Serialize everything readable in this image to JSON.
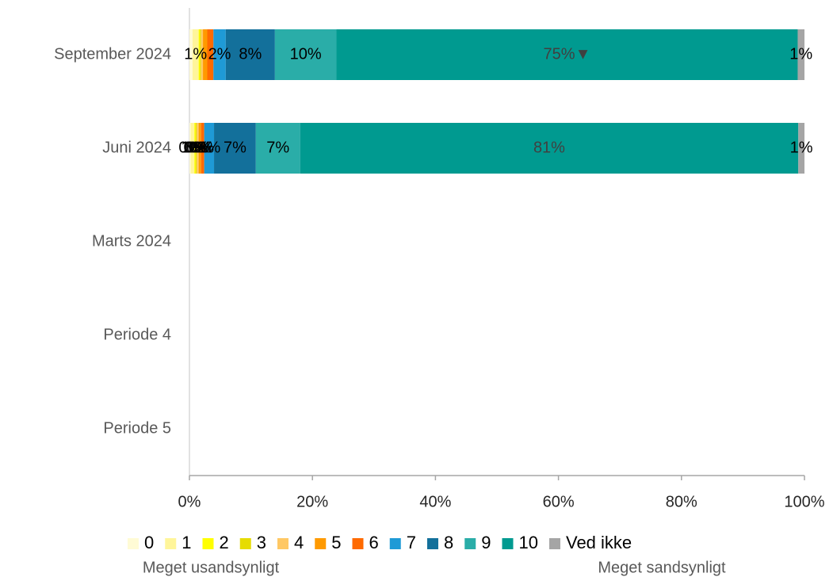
{
  "chart_data": {
    "type": "stacked-barh",
    "categories": [
      "September 2024",
      "Juni 2024",
      "Marts 2024",
      "Periode 4",
      "Periode 5"
    ],
    "series": [
      {
        "name": "0",
        "color": "#fffbd5",
        "values": [
          0.5,
          0.2,
          null,
          null,
          null
        ],
        "value_labels": [
          null,
          "0%",
          null,
          null,
          null
        ]
      },
      {
        "name": "1",
        "color": "#fff59a",
        "values": [
          1,
          0.6,
          null,
          null,
          null
        ],
        "value_labels": [
          "1%",
          "1%",
          null,
          null,
          null
        ]
      },
      {
        "name": "2",
        "color": "#ffff00",
        "values": [
          0.2,
          0.2,
          null,
          null,
          null
        ],
        "value_labels": [
          null,
          "0%",
          null,
          null,
          null
        ]
      },
      {
        "name": "3",
        "color": "#e6dc00",
        "values": [
          0.2,
          0.2,
          null,
          null,
          null
        ],
        "value_labels": [
          null,
          "0%",
          null,
          null,
          null
        ]
      },
      {
        "name": "4",
        "color": "#ffc864",
        "values": [
          0.3,
          0.3,
          null,
          null,
          null
        ],
        "value_labels": [
          null,
          "0%",
          null,
          null,
          null
        ]
      },
      {
        "name": "5",
        "color": "#ff9a00",
        "values": [
          0.7,
          0.4,
          null,
          null,
          null
        ],
        "value_labels": [
          null,
          "0%",
          null,
          null,
          null
        ]
      },
      {
        "name": "6",
        "color": "#ff6a00",
        "values": [
          1,
          0.5,
          null,
          null,
          null
        ],
        "value_labels": [
          null,
          "1%",
          null,
          null,
          null
        ]
      },
      {
        "name": "7",
        "color": "#1f9ad6",
        "values": [
          2,
          1.6,
          null,
          null,
          null
        ],
        "value_labels": [
          "2%",
          "2%",
          null,
          null,
          null
        ]
      },
      {
        "name": "8",
        "color": "#13709b",
        "values": [
          8,
          6.8,
          null,
          null,
          null
        ],
        "value_labels": [
          "8%",
          "7%",
          null,
          null,
          null
        ]
      },
      {
        "name": "9",
        "color": "#2aada8",
        "values": [
          10,
          7.2,
          null,
          null,
          null
        ],
        "value_labels": [
          "10%",
          "7%",
          null,
          null,
          null
        ]
      },
      {
        "name": "10",
        "color": "#009a90",
        "values": [
          75,
          81,
          null,
          null,
          null
        ],
        "value_labels": [
          "75%▼",
          "81%",
          null,
          null,
          null
        ]
      },
      {
        "name": "Ved ikke",
        "color": "#a5a5a5",
        "values": [
          1.1,
          1,
          null,
          null,
          null
        ],
        "value_labels": [
          "1%",
          "1%",
          null,
          null,
          null
        ]
      }
    ],
    "xlim": [
      0,
      100
    ],
    "xticks": [
      {
        "value": 0,
        "label": "0%"
      },
      {
        "value": 20,
        "label": "20%"
      },
      {
        "value": 40,
        "label": "40%"
      },
      {
        "value": 60,
        "label": "60%"
      },
      {
        "value": 80,
        "label": "80%"
      },
      {
        "value": 100,
        "label": "100%"
      }
    ],
    "legend_notes": [
      "Meget usandsynligt",
      "Meget sandsynligt"
    ],
    "legend": "bottom"
  }
}
